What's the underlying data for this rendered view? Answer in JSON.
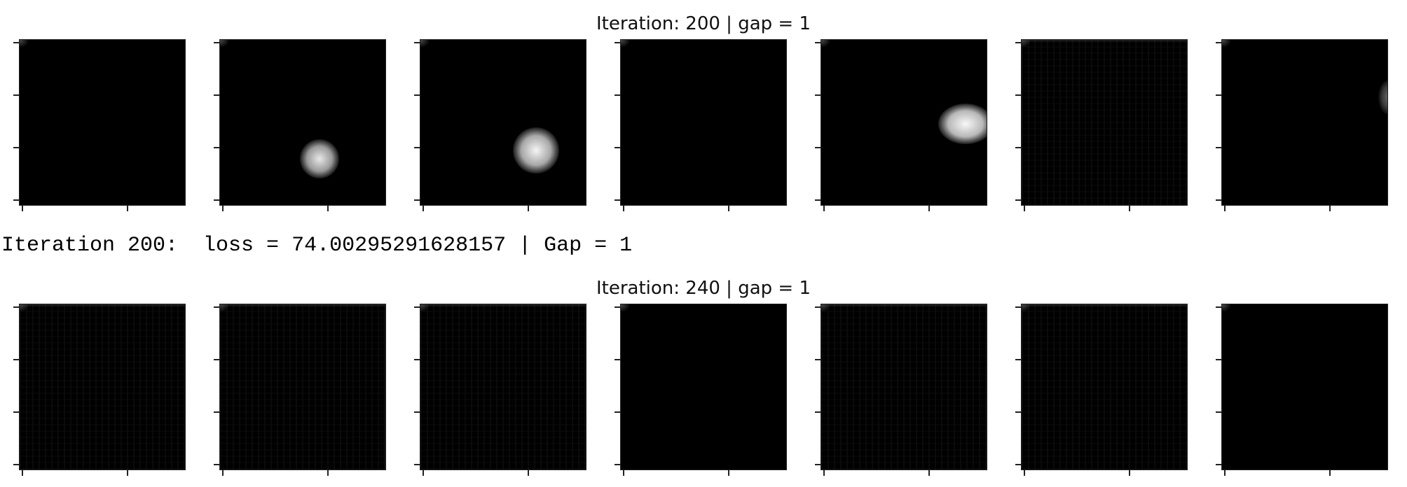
{
  "figure_rows": [
    {
      "title": "Iteration: 200 | gap = 1",
      "panels": [
        {
          "feature": "empty"
        },
        {
          "feature": "blob-small"
        },
        {
          "feature": "blob-medium"
        },
        {
          "feature": "empty"
        },
        {
          "feature": "blob-edge"
        },
        {
          "feature": "faint-grid"
        },
        {
          "feature": "edge-faint"
        }
      ]
    },
    {
      "title": "Iteration: 240 | gap = 1",
      "panels": [
        {
          "feature": "faint-grid"
        },
        {
          "feature": "faint-grid"
        },
        {
          "feature": "faint-grid"
        },
        {
          "feature": "empty"
        },
        {
          "feature": "faint-grid"
        },
        {
          "feature": "faint-grid"
        },
        {
          "feature": "empty"
        }
      ]
    }
  ],
  "console": {
    "line": "Iteration 200:  loss = 74.00295291628157 | Gap = 1"
  },
  "colors": {
    "background": "#ffffff",
    "panel_fill": "#000000",
    "text": "#111111"
  }
}
